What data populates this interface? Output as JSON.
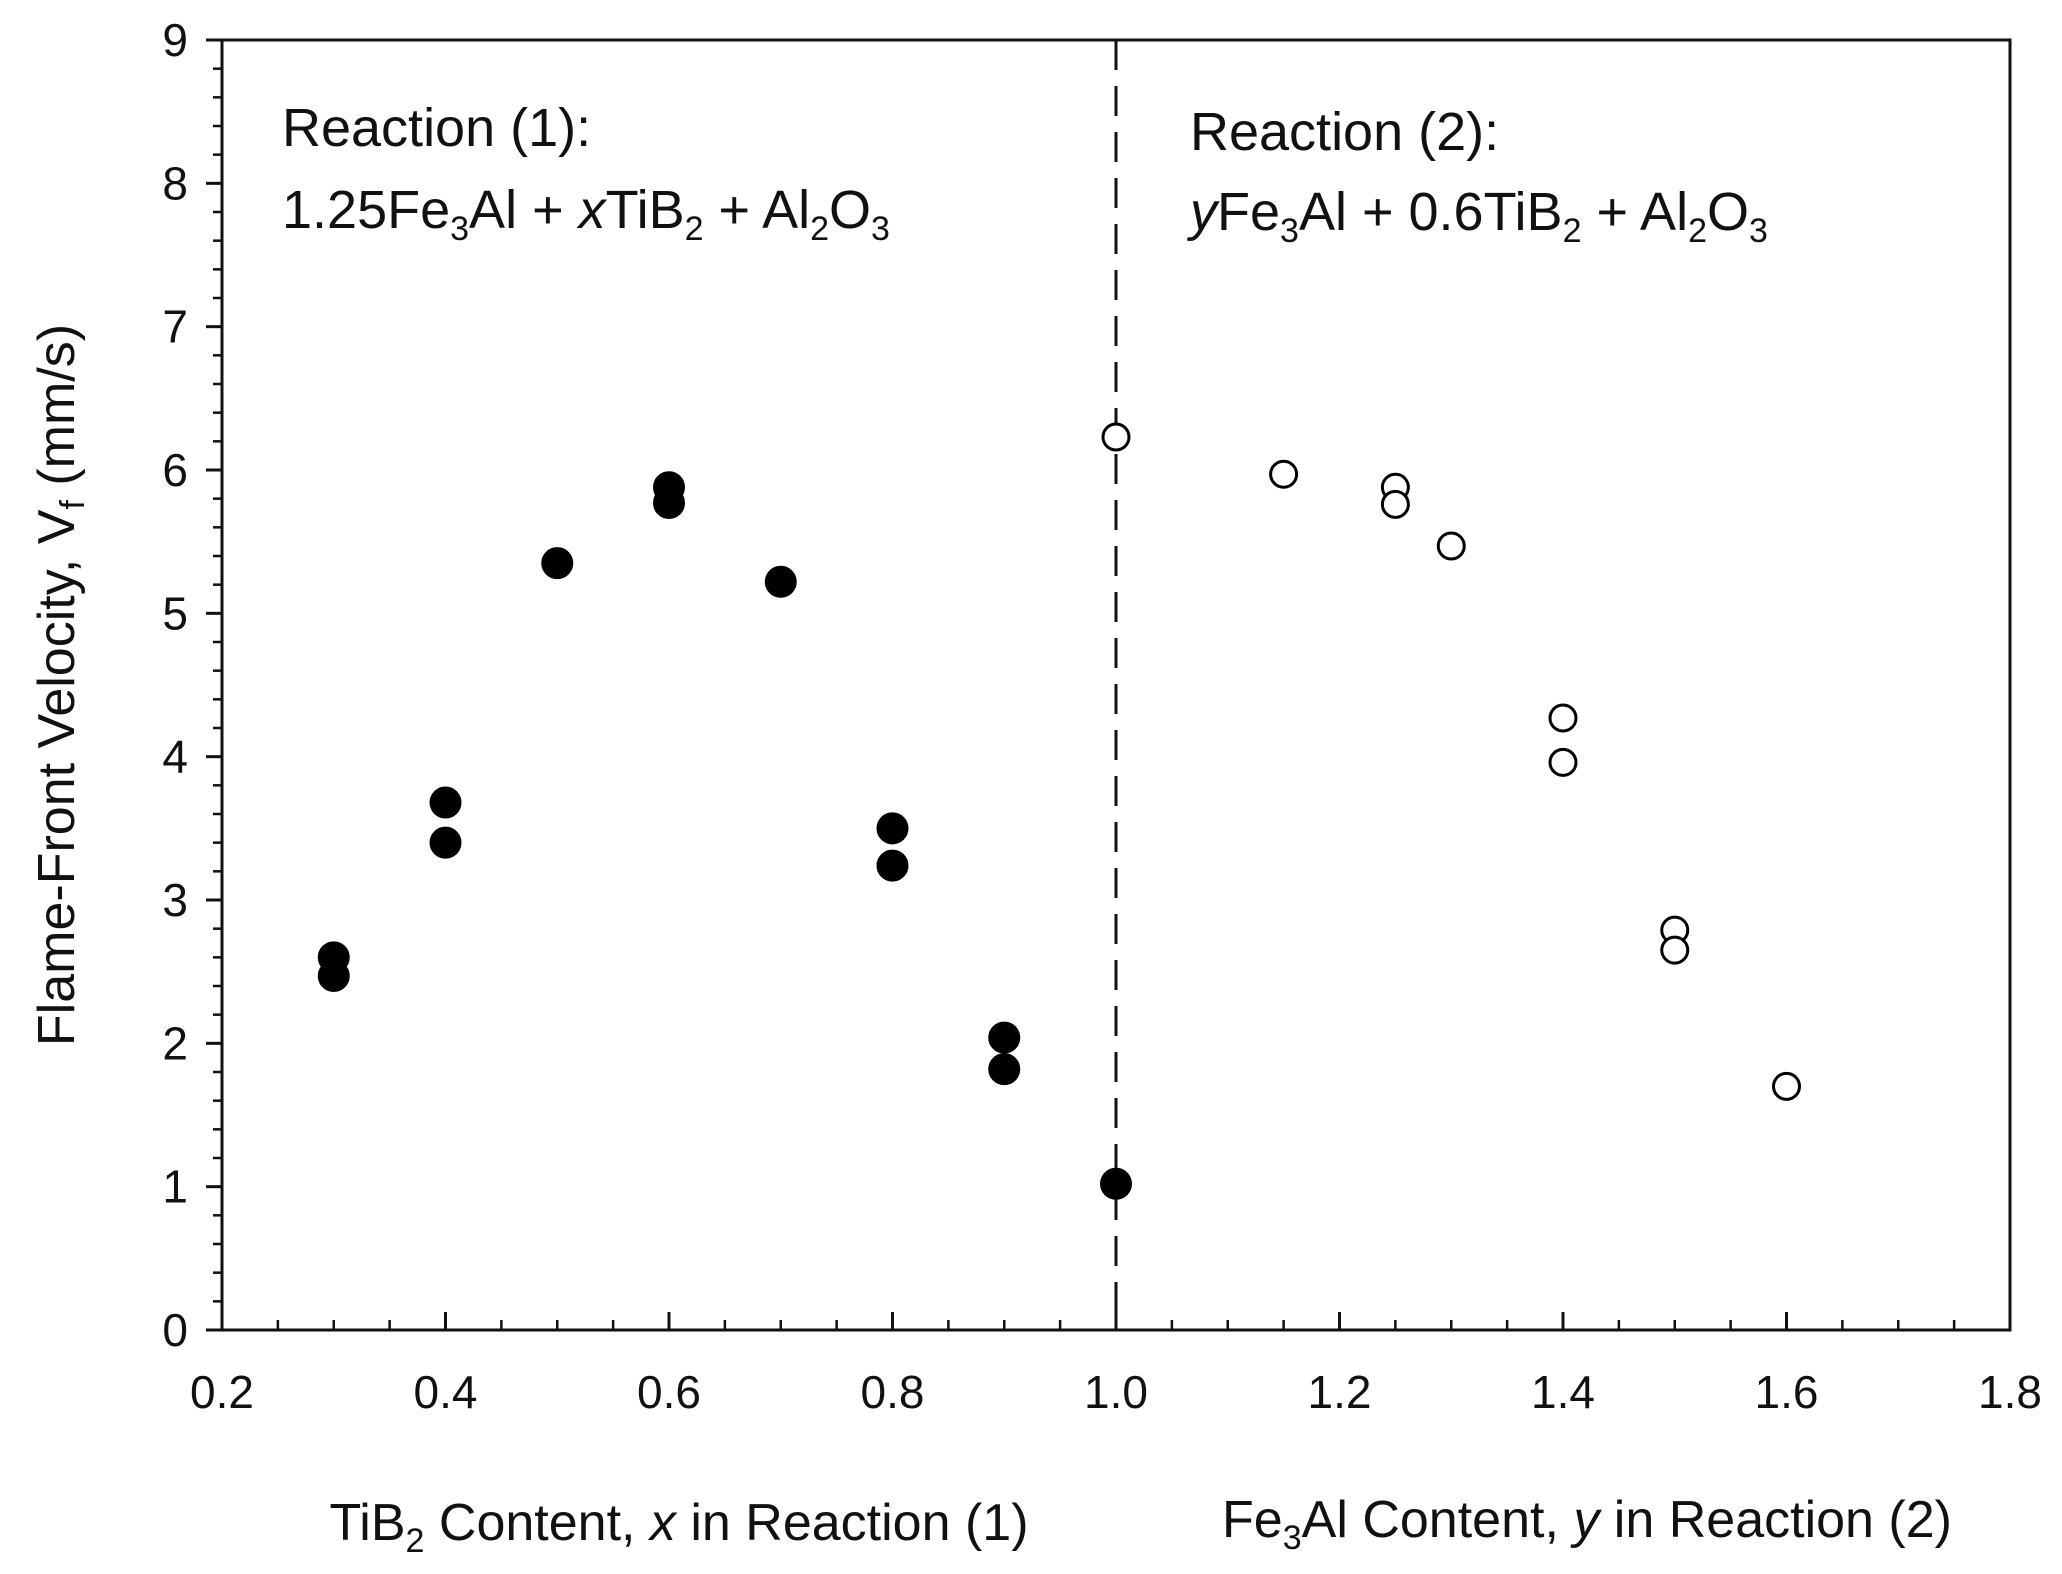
{
  "chart_data": {
    "type": "scatter",
    "xlim": [
      0.2,
      1.8
    ],
    "ylim": [
      0,
      9
    ],
    "x_major_ticks": [
      0.2,
      0.4,
      0.6,
      0.8,
      1.0,
      1.2,
      1.4,
      1.6,
      1.8
    ],
    "x_tick_labels": [
      "0.2",
      "0.4",
      "0.6",
      "0.8",
      "1.0",
      "1.2",
      "1.4",
      "1.6",
      "1.8"
    ],
    "y_major_ticks": [
      0,
      1,
      2,
      3,
      4,
      5,
      6,
      7,
      8,
      9
    ],
    "y_tick_labels": [
      "0",
      "1",
      "2",
      "3",
      "4",
      "5",
      "6",
      "7",
      "8",
      "9"
    ],
    "grid": false,
    "divider_x": 1.0,
    "ylabel": {
      "main": "Flame-Front Velocity, V",
      "sub": "f",
      "unit": " (mm/s)"
    },
    "xlabel_left": {
      "pre": "TiB",
      "sub": "2",
      "mid": " Content, ",
      "var": "x",
      "post": " in Reaction (1)"
    },
    "xlabel_right": {
      "pre": "Fe",
      "sub": "3",
      "mid": "Al Content, ",
      "var": "y",
      "post": " in Reaction (2)"
    },
    "annotation_left": {
      "title": "Reaction (1):",
      "parts": [
        {
          "t": "1.25Fe"
        },
        {
          "t": "3",
          "sub": true
        },
        {
          "t": "Al + "
        },
        {
          "t": "x",
          "italic": true
        },
        {
          "t": "TiB"
        },
        {
          "t": "2",
          "sub": true
        },
        {
          "t": " + Al"
        },
        {
          "t": "2",
          "sub": true
        },
        {
          "t": "O"
        },
        {
          "t": "3",
          "sub": true
        }
      ]
    },
    "annotation_right": {
      "title": "Reaction (2):",
      "parts": [
        {
          "t": "y",
          "italic": true
        },
        {
          "t": "Fe"
        },
        {
          "t": "3",
          "sub": true
        },
        {
          "t": "Al + 0.6TiB"
        },
        {
          "t": "2",
          "sub": true
        },
        {
          "t": " + Al"
        },
        {
          "t": "2",
          "sub": true
        },
        {
          "t": "O"
        },
        {
          "t": "3",
          "sub": true
        }
      ]
    },
    "series": [
      {
        "marker": "filled-circle",
        "color": "#000000",
        "points": [
          [
            0.3,
            2.6
          ],
          [
            0.3,
            2.47
          ],
          [
            0.4,
            3.68
          ],
          [
            0.4,
            3.4
          ],
          [
            0.5,
            5.35
          ],
          [
            0.6,
            5.88
          ],
          [
            0.6,
            5.77
          ],
          [
            0.7,
            5.22
          ],
          [
            0.8,
            3.5
          ],
          [
            0.8,
            3.24
          ],
          [
            0.9,
            2.04
          ],
          [
            0.9,
            1.82
          ],
          [
            1.0,
            1.02
          ]
        ]
      },
      {
        "marker": "open-circle",
        "color": "#000000",
        "points": [
          [
            1.0,
            6.23
          ],
          [
            1.15,
            5.97
          ],
          [
            1.25,
            5.88
          ],
          [
            1.25,
            5.76
          ],
          [
            1.3,
            5.47
          ],
          [
            1.4,
            4.27
          ],
          [
            1.4,
            3.96
          ],
          [
            1.5,
            2.79
          ],
          [
            1.5,
            2.65
          ],
          [
            1.6,
            1.7
          ]
        ]
      }
    ]
  }
}
